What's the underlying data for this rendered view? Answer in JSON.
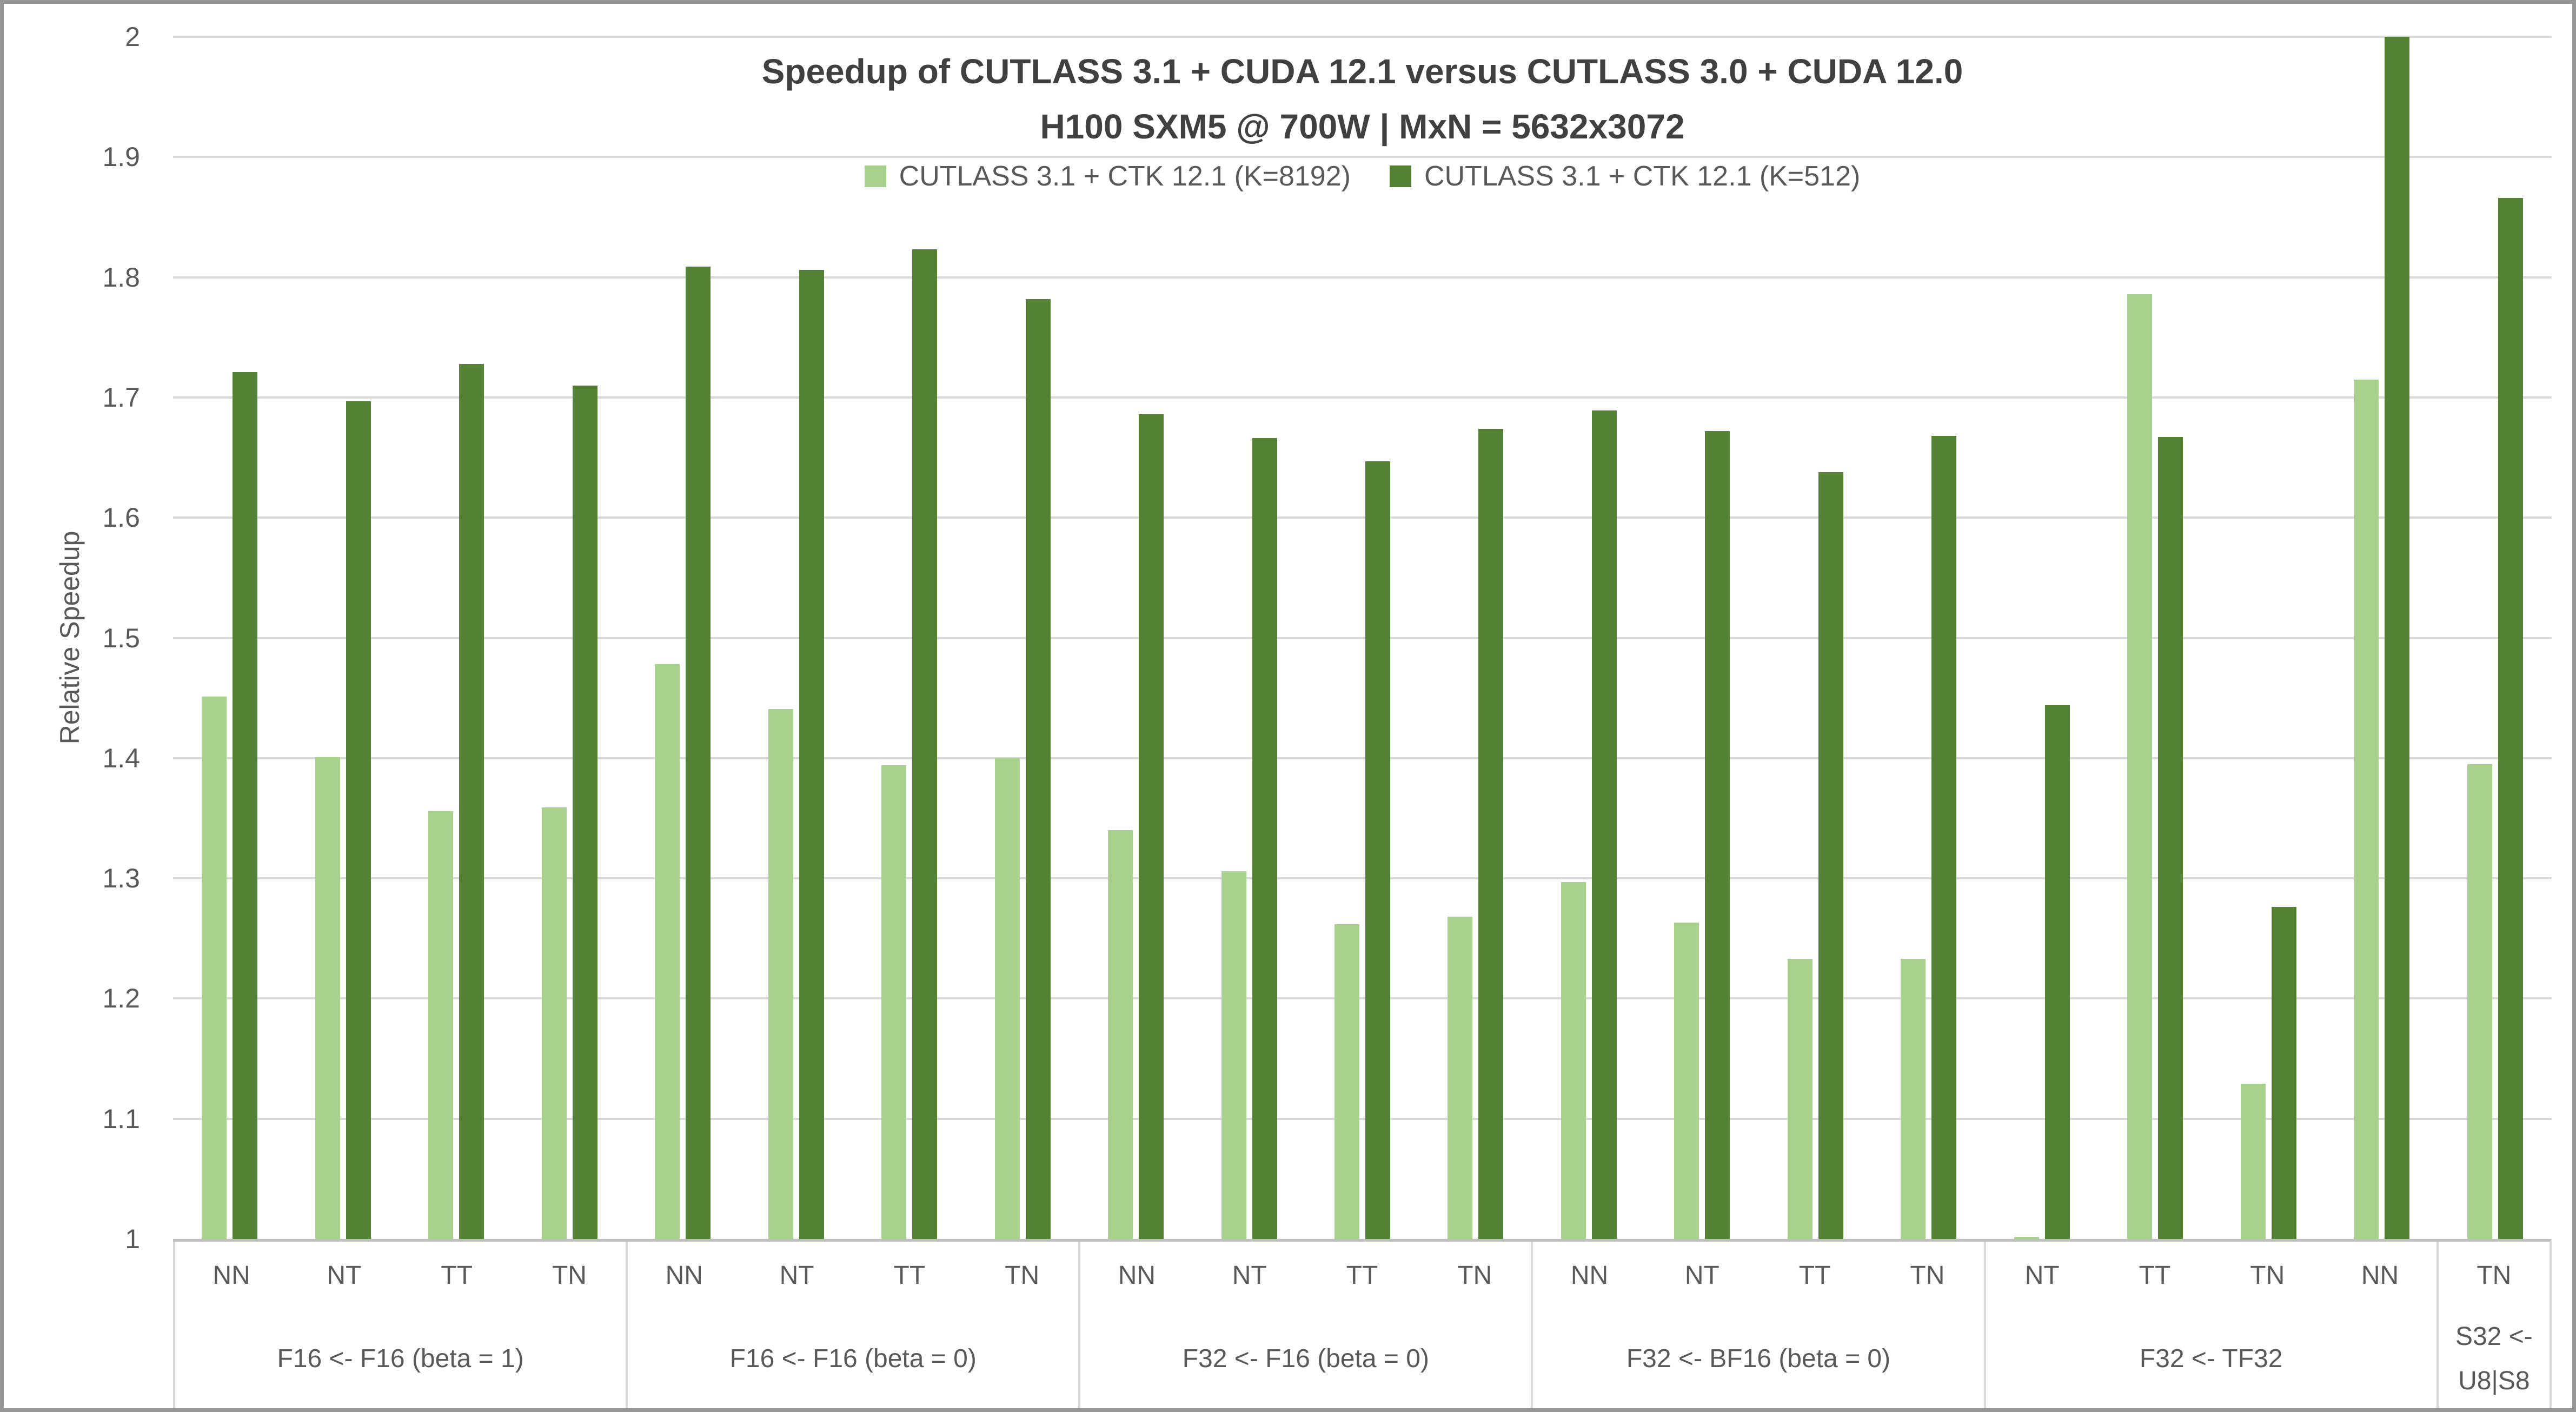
{
  "title": {
    "line1": "Speedup of CUTLASS 3.1 + CUDA 12.1 versus CUTLASS 3.0 + CUDA 12.0",
    "line2": "H100 SXM5 @ 700W | MxN = 5632x3072"
  },
  "y_axis": {
    "label": "Relative Speedup",
    "min": 1,
    "max": 2,
    "step": 0.1,
    "ticks": [
      "2",
      "1.9",
      "1.8",
      "1.7",
      "1.6",
      "1.5",
      "1.4",
      "1.3",
      "1.2",
      "1.1",
      "1"
    ]
  },
  "legend": {
    "items": [
      {
        "label": "CUTLASS 3.1 + CTK 12.1 (K=8192)",
        "color": "#A9D18E"
      },
      {
        "label": "CUTLASS 3.1 + CTK 12.1 (K=512)",
        "color": "#548235"
      }
    ]
  },
  "colors": {
    "series_light": "#A9D18E",
    "series_dark": "#548235",
    "gridline": "#D9D9D9",
    "axis_line": "#BFBFBF",
    "axis_text": "#595959",
    "title_text": "#404040",
    "chart_border": "#969696"
  },
  "chart_data": {
    "type": "bar",
    "title": "Speedup of CUTLASS 3.1 + CUDA 12.1 versus CUTLASS 3.0 + CUDA 12.0",
    "subtitle": "H100 SXM5 @ 700W | MxN = 5632x3072",
    "ylabel": "Relative Speedup",
    "ylim": [
      1,
      2
    ],
    "ytick_step": 0.1,
    "grid": true,
    "legend_position": "top-center",
    "series_names": [
      "CUTLASS 3.1 + CTK 12.1 (K=8192)",
      "CUTLASS 3.1 + CTK 12.1 (K=512)"
    ],
    "groups": [
      {
        "label": "F16 <- F16 (beta = 1)",
        "categories": [
          "NN",
          "NT",
          "TT",
          "TN"
        ],
        "series": [
          {
            "name": "CUTLASS 3.1 + CTK 12.1 (K=8192)",
            "values": [
              1.451,
              1.401,
              1.356,
              1.359
            ]
          },
          {
            "name": "CUTLASS 3.1 + CTK 12.1 (K=512)",
            "values": [
              1.721,
              1.697,
              1.728,
              1.71
            ]
          }
        ]
      },
      {
        "label": "F16 <- F16 (beta = 0)",
        "categories": [
          "NN",
          "NT",
          "TT",
          "TN"
        ],
        "series": [
          {
            "name": "CUTLASS 3.1 + CTK 12.1 (K=8192)",
            "values": [
              1.478,
              1.441,
              1.394,
              1.4
            ]
          },
          {
            "name": "CUTLASS 3.1 + CTK 12.1 (K=512)",
            "values": [
              1.809,
              1.806,
              1.823,
              1.782
            ]
          }
        ]
      },
      {
        "label": "F32 <- F16 (beta = 0)",
        "categories": [
          "NN",
          "NT",
          "TT",
          "TN"
        ],
        "series": [
          {
            "name": "CUTLASS 3.1 + CTK 12.1 (K=8192)",
            "values": [
              1.34,
              1.306,
              1.262,
              1.268
            ]
          },
          {
            "name": "CUTLASS 3.1 + CTK 12.1 (K=512)",
            "values": [
              1.686,
              1.666,
              1.647,
              1.674
            ]
          }
        ]
      },
      {
        "label": "F32 <- BF16 (beta = 0)",
        "categories": [
          "NN",
          "NT",
          "TT",
          "TN"
        ],
        "series": [
          {
            "name": "CUTLASS 3.1 + CTK 12.1 (K=8192)",
            "values": [
              1.297,
              1.263,
              1.233,
              1.233
            ]
          },
          {
            "name": "CUTLASS 3.1 + CTK 12.1 (K=512)",
            "values": [
              1.689,
              1.672,
              1.638,
              1.668
            ]
          }
        ]
      },
      {
        "label": "F32 <- TF32",
        "categories": [
          "NT",
          "TT",
          "TN",
          "NN"
        ],
        "series": [
          {
            "name": "CUTLASS 3.1 + CTK 12.1 (K=8192)",
            "values": [
              1.002,
              1.786,
              1.129,
              1.715
            ]
          },
          {
            "name": "CUTLASS 3.1 + CTK 12.1 (K=512)",
            "values": [
              1.444,
              1.667,
              1.276,
              2.0
            ]
          }
        ]
      },
      {
        "label": "S32 <-\nU8|S8",
        "categories": [
          "TN"
        ],
        "series": [
          {
            "name": "CUTLASS 3.1 + CTK 12.1 (K=8192)",
            "values": [
              1.395
            ]
          },
          {
            "name": "CUTLASS 3.1 + CTK 12.1 (K=512)",
            "values": [
              1.866
            ]
          }
        ]
      }
    ]
  }
}
